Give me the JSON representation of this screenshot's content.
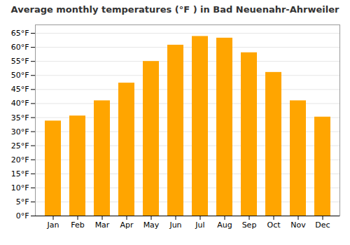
{
  "chart_data": {
    "type": "bar",
    "title": "Average monthly temperatures (°F ) in Bad Neuenahr-Ahrweiler",
    "categories": [
      "Jan",
      "Feb",
      "Mar",
      "Apr",
      "May",
      "Jun",
      "Jul",
      "Aug",
      "Sep",
      "Oct",
      "Nov",
      "Dec"
    ],
    "values": [
      33.8,
      35.6,
      41.0,
      47.3,
      55.0,
      60.8,
      63.9,
      63.3,
      58.1,
      51.1,
      41.0,
      35.2
    ],
    "color": "#FFA500",
    "ylim": [
      0,
      68
    ],
    "yticks": [
      {
        "value": 0,
        "label": "0°F"
      },
      {
        "value": 5,
        "label": "5°F"
      },
      {
        "value": 10,
        "label": "10°F"
      },
      {
        "value": 15,
        "label": "15°F"
      },
      {
        "value": 20,
        "label": "20°F"
      },
      {
        "value": 25,
        "label": "25°F"
      },
      {
        "value": 30,
        "label": "30°F"
      },
      {
        "value": 35,
        "label": "35°F"
      },
      {
        "value": 40,
        "label": "40°F"
      },
      {
        "value": 45,
        "label": "45°F"
      },
      {
        "value": 50,
        "label": "50°F"
      },
      {
        "value": 55,
        "label": "55°F"
      },
      {
        "value": 60,
        "label": "60°F"
      },
      {
        "value": 65,
        "label": "65°F"
      }
    ],
    "grid": true
  }
}
